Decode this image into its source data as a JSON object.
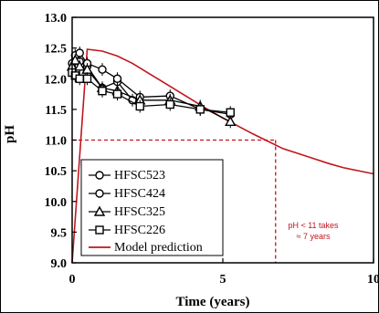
{
  "chart_data": {
    "type": "line",
    "title": "",
    "xlabel": "Time (years)",
    "ylabel": "pH",
    "xlim": [
      0,
      10
    ],
    "ylim": [
      9.0,
      13.0
    ],
    "x_ticks": [
      "0",
      "5",
      "10"
    ],
    "y_ticks": [
      "9.0",
      "9.5",
      "10.0",
      "10.5",
      "11.0",
      "11.5",
      "12.0",
      "12.5",
      "13.0"
    ],
    "grid": false,
    "legend_position": "bottom-left",
    "series": [
      {
        "name": "HFSC523",
        "marker": "circle",
        "color": "#000000",
        "x": [
          0.0,
          0.1,
          0.25,
          0.5,
          1.0,
          1.5,
          2.0,
          2.25
        ],
        "y": [
          12.15,
          12.3,
          12.28,
          12.2,
          11.85,
          11.95,
          11.65,
          11.6
        ]
      },
      {
        "name": "HFSC424",
        "marker": "circle",
        "color": "#000000",
        "x": [
          0.0,
          0.1,
          0.25,
          0.5,
          1.0,
          1.5,
          2.25,
          3.25,
          4.25,
          5.25
        ],
        "y": [
          12.25,
          12.38,
          12.42,
          12.25,
          12.15,
          12.0,
          11.7,
          11.72,
          11.5,
          11.42
        ]
      },
      {
        "name": "HFSC325",
        "marker": "triangle",
        "color": "#000000",
        "x": [
          0.0,
          0.1,
          0.25,
          0.5,
          1.0,
          1.5,
          2.25,
          3.25,
          4.25,
          5.25
        ],
        "y": [
          12.2,
          12.3,
          12.2,
          12.15,
          11.85,
          11.8,
          11.65,
          11.65,
          11.55,
          11.3
        ]
      },
      {
        "name": "HFSC226",
        "marker": "square",
        "color": "#000000",
        "x": [
          0.0,
          0.1,
          0.25,
          0.5,
          1.0,
          1.5,
          2.25,
          3.25,
          4.25,
          5.25
        ],
        "y": [
          12.1,
          12.05,
          12.0,
          12.0,
          11.8,
          11.75,
          11.55,
          11.58,
          11.5,
          11.45
        ]
      },
      {
        "name": "Model prediction",
        "marker": "none",
        "color": "#c0161c",
        "x": [
          0,
          0.5,
          1,
          1.5,
          2,
          2.5,
          3,
          3.5,
          4,
          4.5,
          5,
          5.5,
          6,
          6.5,
          7,
          7.5,
          8,
          8.5,
          9,
          9.5,
          10
        ],
        "y": [
          9.0,
          12.48,
          12.45,
          12.37,
          12.25,
          12.1,
          11.95,
          11.8,
          11.65,
          11.5,
          11.36,
          11.23,
          11.1,
          10.98,
          10.86,
          10.78,
          10.7,
          10.62,
          10.55,
          10.5,
          10.45
        ]
      }
    ],
    "reference_lines": {
      "threshold_ph": 11.0,
      "threshold_time": 6.75,
      "color": "#c0161c"
    },
    "annotations": [
      "pH < 11 takes",
      "≈ 7 years"
    ]
  }
}
